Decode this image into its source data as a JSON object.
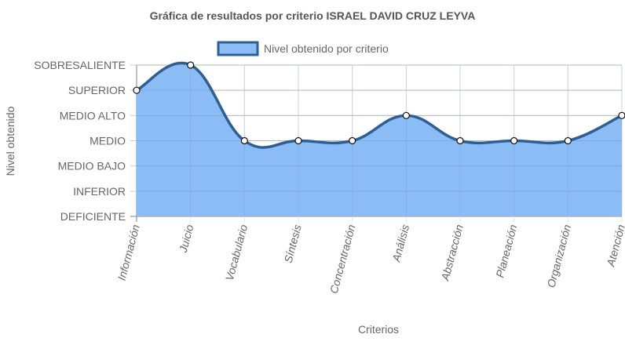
{
  "chart_data": {
    "type": "line",
    "title": "Gráfica de resultados por criterio ISRAEL DAVID CRUZ LEYVA",
    "xlabel": "Criterios",
    "ylabel": "Nivel obtenido",
    "y_levels": [
      "DEFICIENTE",
      "INFERIOR",
      "MEDIO BAJO",
      "MEDIO",
      "MEDIO ALTO",
      "SUPERIOR",
      "SOBRESALIENTE"
    ],
    "ylim": [
      0,
      6
    ],
    "categories": [
      "Información",
      "Juicio",
      "Vocabulario",
      "Síntesis",
      "Concentración",
      "Análisis",
      "Abstracción",
      "Planeación",
      "Organización",
      "Atención"
    ],
    "series": [
      {
        "name": "Nivel obtenido por criterio",
        "values": [
          5,
          6,
          3,
          3,
          3,
          4,
          3,
          3,
          3,
          4
        ],
        "line_color": "#2f5f92",
        "fill_color": "#8cbcf6"
      }
    ],
    "legend_position": "top",
    "grid": true,
    "filled": true,
    "smooth": true
  }
}
